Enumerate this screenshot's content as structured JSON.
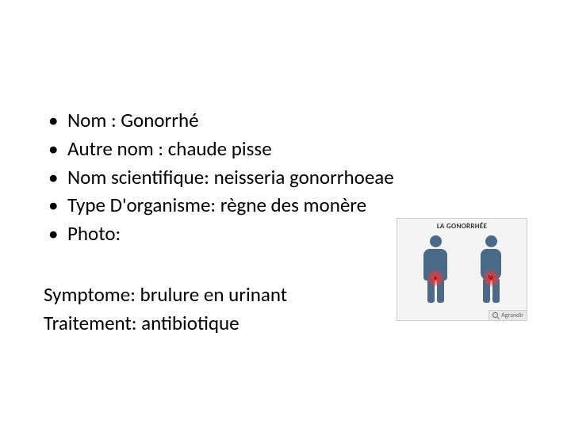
{
  "bullets": {
    "b0": "Nom : Gonorrhé",
    "b1": "Autre nom : chaude pisse",
    "b2": "Nom scientifique: neisseria gonorrhoeae",
    "b3": "Type D'organisme: règne des monère",
    "b4": "Photo:"
  },
  "bottom": {
    "line0": "Symptome: brulure en urinant",
    "line1": "Traitement: antibiotique"
  },
  "photo": {
    "title": "LA GONORRHÉE",
    "enlarge_label": "Agrandir"
  },
  "style": {
    "font_family": "Calibri",
    "font_size_pt": 25,
    "text_color": "#000000",
    "background": "#ffffff",
    "photo_border": "#cccccc",
    "photo_bg": "#f4f4f4",
    "silhouette_color": "#4a6a88",
    "glow_color": "#ff3232"
  }
}
